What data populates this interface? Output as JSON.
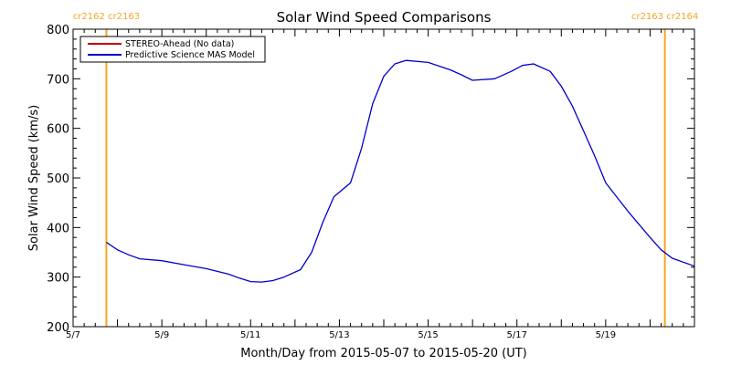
{
  "chart_data": {
    "type": "line",
    "title": "Solar Wind Speed Comparisons",
    "xlabel": "Month/Day from 2015-05-07 to 2015-05-20 (UT)",
    "ylabel": "Solar Wind Speed (km/s)",
    "xlim": [
      "2015-05-07",
      "2015-05-21"
    ],
    "ylim": [
      200,
      800
    ],
    "x_ticks": [
      {
        "date": "2015-05-07",
        "label": "5/7"
      },
      {
        "date": "2015-05-09",
        "label": "5/9"
      },
      {
        "date": "2015-05-11",
        "label": "5/11"
      },
      {
        "date": "2015-05-13",
        "label": "5/13"
      },
      {
        "date": "2015-05-15",
        "label": "5/15"
      },
      {
        "date": "2015-05-17",
        "label": "5/17"
      },
      {
        "date": "2015-05-19",
        "label": "5/19"
      }
    ],
    "y_ticks": [
      200,
      300,
      400,
      500,
      600,
      700,
      800
    ],
    "grid": false,
    "legend_position": "top-left",
    "series": [
      {
        "name": "STEREO-Ahead (No data)",
        "color": "#c00000",
        "x": [],
        "y": []
      },
      {
        "name": "Predictive Science MAS Model",
        "color": "#0000cc",
        "x": [
          "2015-05-07T18:00",
          "2015-05-08T00:00",
          "2015-05-08T06:00",
          "2015-05-08T12:00",
          "2015-05-09T00:00",
          "2015-05-09T12:00",
          "2015-05-10T00:00",
          "2015-05-10T12:00",
          "2015-05-10T18:00",
          "2015-05-11T00:00",
          "2015-05-11T06:00",
          "2015-05-11T12:00",
          "2015-05-11T18:00",
          "2015-05-12T03:00",
          "2015-05-12T09:00",
          "2015-05-12T15:00",
          "2015-05-12T21:00",
          "2015-05-13T06:00",
          "2015-05-13T12:00",
          "2015-05-13T18:00",
          "2015-05-14T00:00",
          "2015-05-14T06:00",
          "2015-05-14T12:00",
          "2015-05-15T00:00",
          "2015-05-15T12:00",
          "2015-05-15T18:00",
          "2015-05-16T00:00",
          "2015-05-16T12:00",
          "2015-05-16T21:00",
          "2015-05-17T03:00",
          "2015-05-17T09:00",
          "2015-05-17T18:00",
          "2015-05-18T00:00",
          "2015-05-18T06:00",
          "2015-05-18T12:00",
          "2015-05-18T18:00",
          "2015-05-19T00:00",
          "2015-05-19T12:00",
          "2015-05-20T00:00",
          "2015-05-20T06:00",
          "2015-05-20T12:00",
          "2015-05-21T00:00"
        ],
        "y": [
          370,
          355,
          345,
          337,
          333,
          325,
          317,
          306,
          298,
          291,
          290,
          293,
          300,
          315,
          350,
          410,
          462,
          490,
          560,
          650,
          705,
          730,
          737,
          733,
          718,
          708,
          697,
          700,
          715,
          727,
          730,
          715,
          685,
          645,
          595,
          545,
          490,
          433,
          380,
          355,
          338,
          322
        ]
      }
    ],
    "annotations": [
      {
        "date": "2015-05-07T18:00",
        "label": "cr2162 cr2163",
        "color": "#f5a623"
      },
      {
        "date": "2015-05-20T08:00",
        "label": "cr2163 cr2164",
        "color": "#f5a623"
      }
    ]
  }
}
